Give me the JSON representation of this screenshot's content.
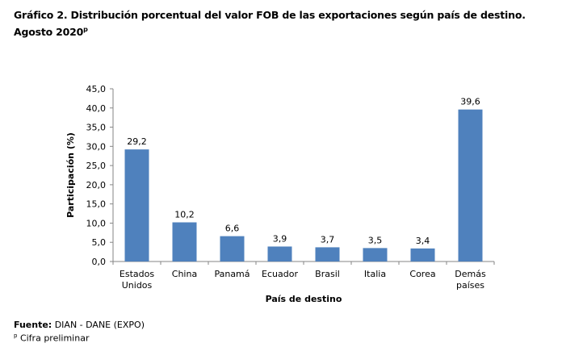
{
  "title": {
    "line1": "Gráfico 2. Distribución porcentual del valor FOB de las exportaciones según país de destino.",
    "line2": "Agosto 2020",
    "sup": "p"
  },
  "chart_data": {
    "type": "bar",
    "categories": [
      [
        "Estados",
        "Unidos"
      ],
      [
        "China"
      ],
      [
        "Panamá"
      ],
      [
        "Ecuador"
      ],
      [
        "Brasil"
      ],
      [
        "Italia"
      ],
      [
        "Corea"
      ],
      [
        "Demás",
        "países"
      ]
    ],
    "values": [
      29.2,
      10.2,
      6.6,
      3.9,
      3.7,
      3.5,
      3.4,
      39.6
    ],
    "data_labels": [
      "29,2",
      "10,2",
      "6,6",
      "3,9",
      "3,7",
      "3,5",
      "3,4",
      "39,6"
    ],
    "xlabel": "País de destino",
    "ylabel": "Participación (%)",
    "ylim": [
      0,
      45
    ],
    "yticks": [
      "0,0",
      "5,0",
      "10,0",
      "15,0",
      "20,0",
      "25,0",
      "30,0",
      "35,0",
      "40,0",
      "45,0"
    ],
    "grid": false,
    "bar_color": "#4F81BD"
  },
  "footer": {
    "source_label": "Fuente:",
    "source": " DIAN - DANE (EXPO)",
    "note_sup": "p",
    "note": " Cifra preliminar"
  }
}
